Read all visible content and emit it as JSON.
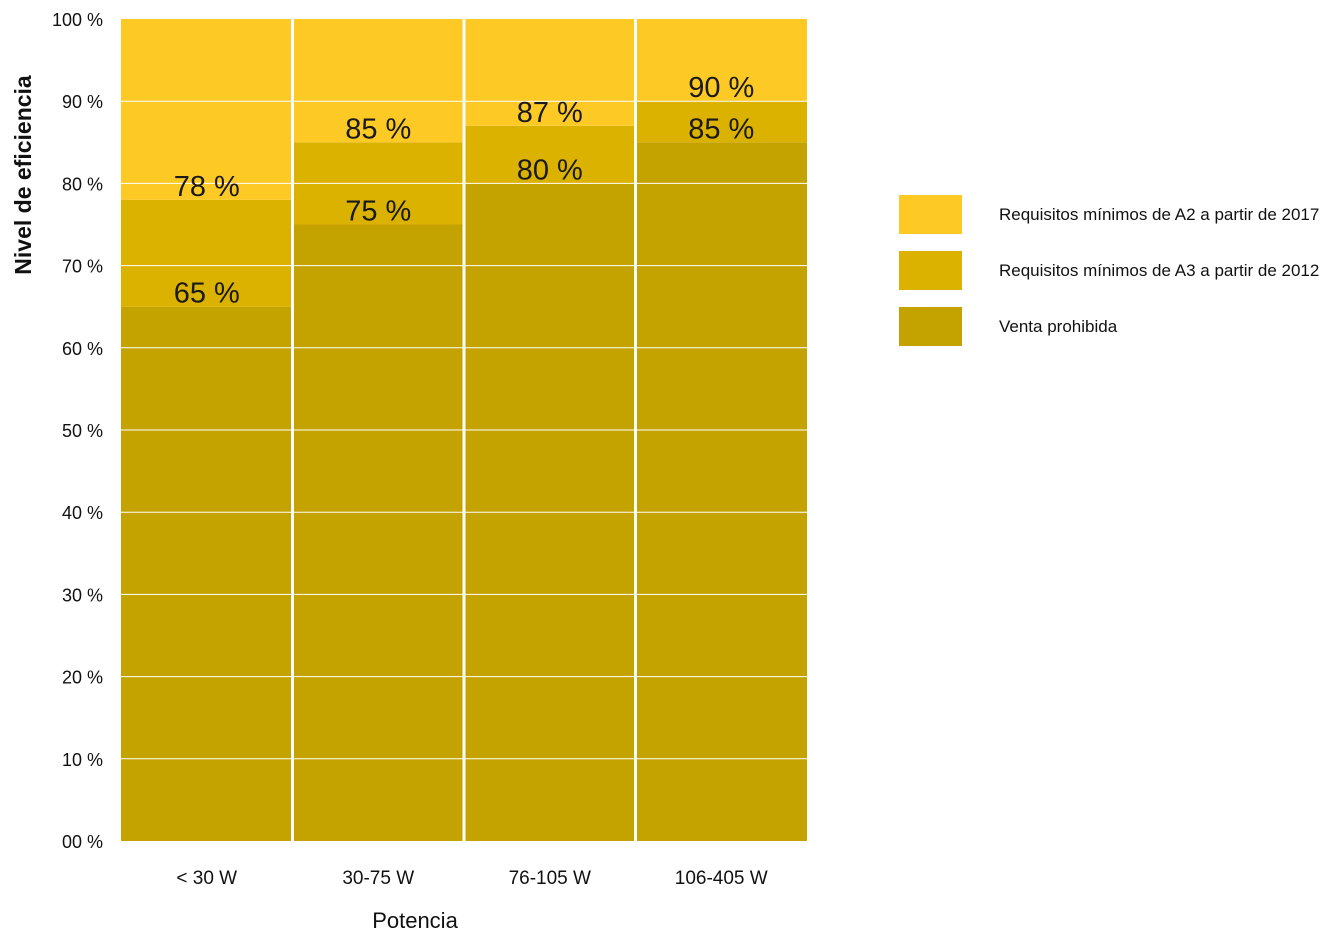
{
  "chart_data": {
    "type": "bar",
    "categories": [
      "< 30 W",
      "30-75 W",
      "76-105 W",
      "106-405 W"
    ],
    "a3_threshold": [
      65,
      75,
      80,
      85
    ],
    "a2_threshold": [
      78,
      85,
      87,
      90
    ],
    "labels_a3": [
      "65 %",
      "75 %",
      "80 %",
      "85 %"
    ],
    "labels_a2": [
      "78 %",
      "85 %",
      "87 %",
      "90 %"
    ],
    "ylim": [
      0,
      100
    ],
    "yticks": [
      0,
      10,
      20,
      30,
      40,
      50,
      60,
      70,
      80,
      90,
      100
    ],
    "ytick_labels": [
      "00 %",
      "10 %",
      "20 %",
      "30 %",
      "40 %",
      "50 %",
      "60 %",
      "70 %",
      "80 %",
      "90 %",
      "100 %"
    ],
    "xlabel": "Potencia",
    "ylabel": "Nivel de eficiencia",
    "grid": true,
    "legend_position": "right",
    "legend": [
      {
        "label": "Requisitos mínimos de A2 a partir de 2017",
        "color": "#fdc925"
      },
      {
        "label": "Requisitos mínimos de A3 a partir de 2012",
        "color": "#dcb200"
      },
      {
        "label": "Venta prohibida",
        "color": "#c4a200"
      }
    ],
    "colors": {
      "a2": "#fdc925",
      "a3": "#dcb200",
      "prohibited": "#c4a200",
      "grid": "#ffffff"
    }
  }
}
